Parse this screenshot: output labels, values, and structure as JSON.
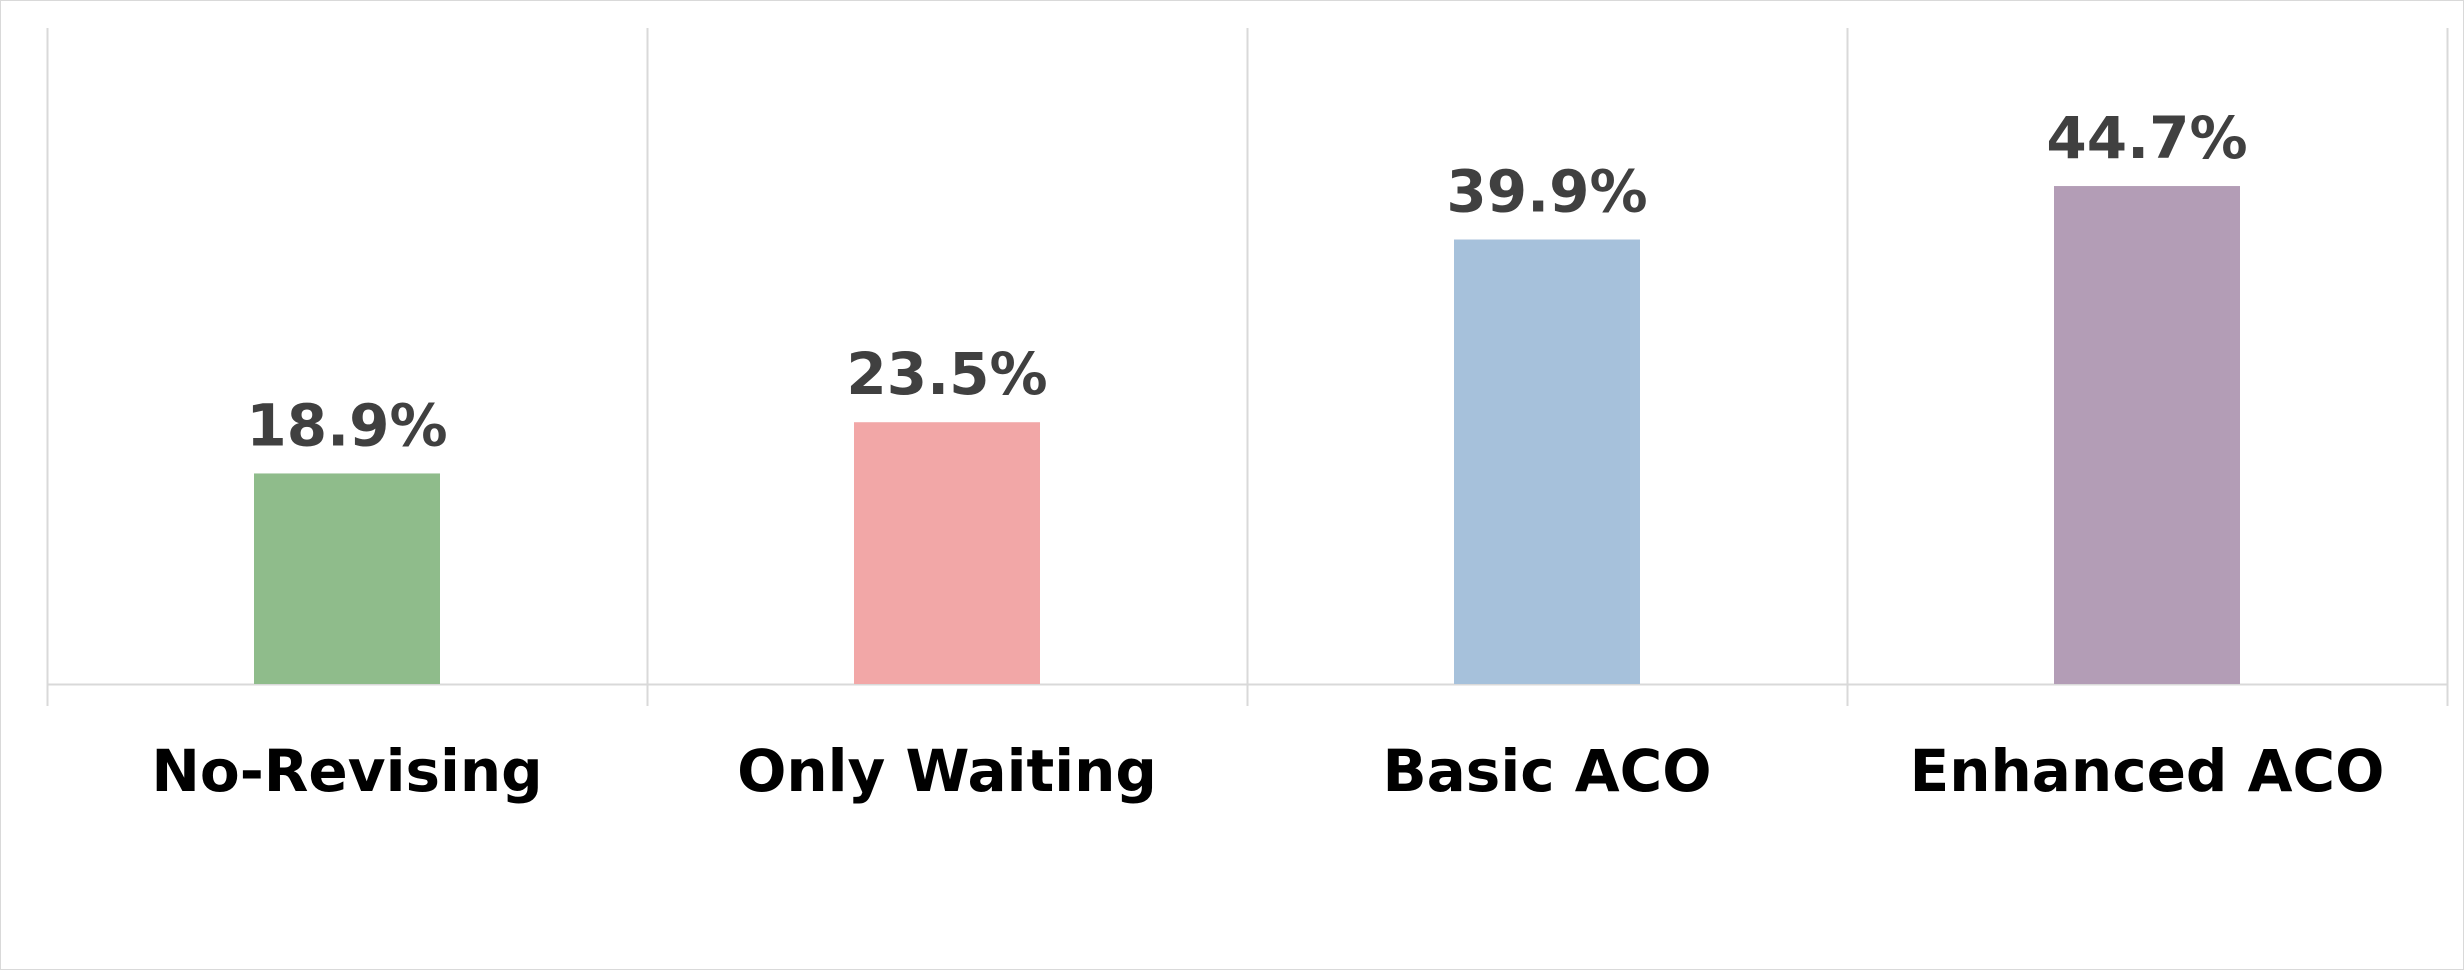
{
  "chart_data": {
    "type": "bar",
    "categories": [
      "No-Revising",
      "Only Waiting",
      "Basic ACO",
      "Enhanced ACO"
    ],
    "values": [
      18.9,
      23.5,
      39.9,
      44.7
    ],
    "value_labels": [
      "18.9%",
      "23.5%",
      "39.9%",
      "44.7%"
    ],
    "bar_colors": [
      "#8fbc8b",
      "#f2a7a7",
      "#a6c1db",
      "#b39db6"
    ],
    "label_color": "#404040",
    "category_label_color": "#000000",
    "grid_color": "#d9d9d9",
    "ylim": [
      0,
      50
    ],
    "grid": "vertical category separators",
    "legend": "none",
    "title": "",
    "xlabel": "",
    "ylabel": ""
  }
}
